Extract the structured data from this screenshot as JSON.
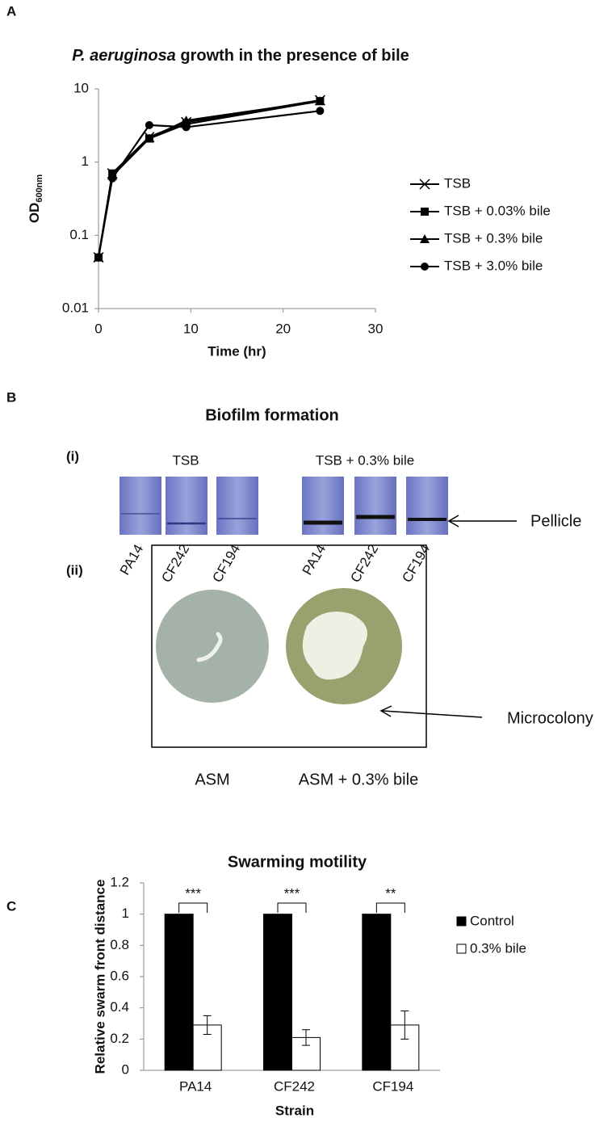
{
  "panels": {
    "a": "A",
    "b": "B",
    "c": "C"
  },
  "biofilm": {
    "title": "Biofilm formation",
    "part_i": "(i)",
    "groups": [
      "TSB",
      "TSB + 0.3% bile"
    ],
    "strains": [
      "PA14",
      "CF242",
      "CF194",
      "PA14",
      "CF242",
      "CF194"
    ],
    "pellicle": "Pellicle",
    "part_ii": "(ii)",
    "microcolony": "Microcolony",
    "plates": [
      "ASM",
      "ASM + 0.3% bile"
    ]
  },
  "chart_data": [
    {
      "type": "line",
      "title_italic": "P. aeruginosa",
      "title": "growth in the presence of bile",
      "xlabel": "Time (hr)",
      "ylabel": "OD",
      "ylabel_sub": "600nm",
      "log_y": true,
      "legend": "right",
      "x": [
        0,
        1.5,
        5.5,
        9.5,
        24
      ],
      "series": [
        {
          "name": "TSB",
          "color": "#000000",
          "marker": "x",
          "values": [
            0.05,
            0.7,
            2.2,
            3.5,
            7
          ]
        },
        {
          "name": "TSB + 0.03% bile",
          "color": "#000000",
          "marker": "square",
          "values": [
            0.05,
            0.7,
            2.1,
            3.3,
            6.8
          ]
        },
        {
          "name": "TSB + 0.3% bile",
          "color": "#000000",
          "marker": "triangle",
          "values": [
            0.05,
            0.65,
            2.1,
            3.7,
            6.8
          ]
        },
        {
          "name": "TSB + 3.0% bile",
          "color": "#000000",
          "marker": "circle",
          "values": [
            0.05,
            0.6,
            3.2,
            3.0,
            5
          ]
        }
      ],
      "xlim": [
        0,
        30
      ],
      "xticks": [
        0,
        10,
        20,
        30
      ],
      "ylim": [
        0.01,
        10
      ],
      "yticks": [
        0.01,
        0.1,
        1,
        10
      ]
    },
    {
      "type": "bar",
      "title": "Swarming motility",
      "xlabel": "Strain",
      "ylabel": "Relative swarm front distance",
      "legend": "right",
      "categories": [
        "PA14",
        "CF242",
        "CF194"
      ],
      "series": [
        {
          "name": "Control",
          "color": "#000000",
          "values": [
            1,
            1,
            1
          ]
        },
        {
          "name": "0.3% bile",
          "color": "#ffffff",
          "values": [
            0.29,
            0.21,
            0.29
          ],
          "errors": [
            0.06,
            0.05,
            0.09
          ]
        }
      ],
      "significance": [
        "***",
        "***",
        "**"
      ],
      "ylim": [
        0,
        1.2
      ],
      "yticks": [
        0,
        0.2,
        0.4,
        0.6,
        0.8,
        1,
        1.2
      ]
    }
  ]
}
